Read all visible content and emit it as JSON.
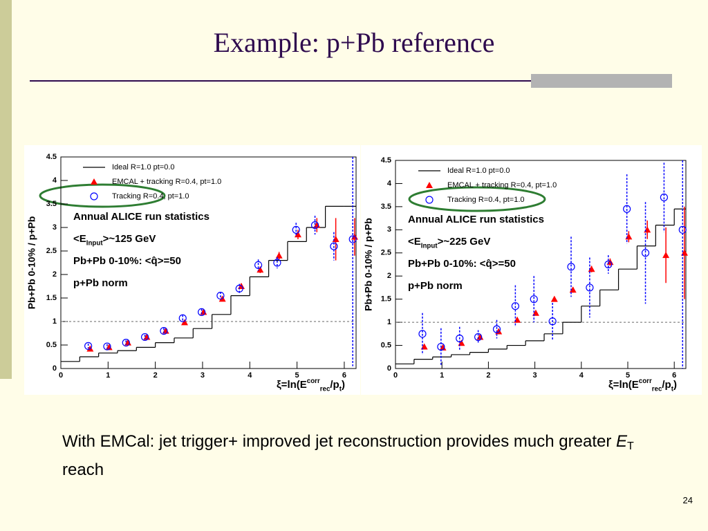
{
  "slide": {
    "title": "Example: p+Pb reference",
    "caption": [
      {
        "text": "With EMCal: jet trigger+ improved jet reconstruction provides much greater "
      },
      {
        "text": "E",
        "shift": "italic"
      },
      {
        "text": "T",
        "shift": "sub"
      },
      {
        "text": " reach"
      }
    ],
    "page": "24"
  },
  "chart_data": [
    {
      "type": "scatter",
      "ylabel": "Pb+Pb 0-10% / p+Pb",
      "xlabel": [
        {
          "text": "ξ=ln(E"
        },
        {
          "text": "corr",
          "shift": "sup"
        },
        {
          "text": "rec",
          "shift": "sub"
        },
        {
          "text": "/p"
        },
        {
          "text": "t",
          "shift": "sub"
        },
        {
          "text": ")"
        }
      ],
      "xlim": [
        0,
        6.25
      ],
      "ylim": [
        0,
        4.5
      ],
      "xticks": [
        0,
        1,
        2,
        3,
        4,
        5,
        6
      ],
      "yticks": [
        0,
        0.5,
        1,
        1.5,
        2,
        2.5,
        3,
        3.5,
        4,
        4.5
      ],
      "hline": 1,
      "annotations": [
        [
          {
            "text": "Annual ALICE run statistics"
          }
        ],
        [
          {
            "text": "<E"
          },
          {
            "text": "Input",
            "shift": "sub"
          },
          {
            "text": ">~125 GeV"
          }
        ],
        [
          {
            "text": "Pb+Pb 0-10%: <q̂>=50"
          }
        ],
        [
          {
            "text": "p+Pb norm"
          }
        ]
      ],
      "series": [
        {
          "name": "Ideal R=1.0 pt=0.0",
          "color": "#000000",
          "bins": [
            0,
            0.4,
            0.8,
            1.2,
            1.6,
            2.0,
            2.4,
            2.8,
            3.2,
            3.6,
            4.0,
            4.4,
            4.8,
            5.2,
            5.6,
            6.0,
            6.25
          ],
          "values": [
            0.15,
            0.25,
            0.33,
            0.38,
            0.45,
            0.55,
            0.65,
            0.85,
            1.15,
            1.55,
            1.95,
            2.3,
            2.7,
            3.0,
            3.45,
            3.45
          ]
        },
        {
          "name": "EMCAL + tracking R=0.4, pt=1.0",
          "color": "#ff0000",
          "marker": "triangle",
          "x": [
            0.62,
            1.02,
            1.42,
            1.82,
            2.22,
            2.62,
            3.02,
            3.42,
            3.82,
            4.22,
            4.62,
            5.02,
            5.42,
            5.82,
            6.22
          ],
          "values": [
            0.42,
            0.45,
            0.55,
            0.67,
            0.8,
            0.98,
            1.2,
            1.48,
            1.75,
            2.1,
            2.4,
            2.85,
            3.05,
            2.75,
            2.8
          ],
          "errors": [
            0.03,
            0.03,
            0.03,
            0.03,
            0.04,
            0.04,
            0.05,
            0.05,
            0.06,
            0.07,
            0.08,
            0.1,
            0.15,
            0.45,
            0.4
          ]
        },
        {
          "name": "Tracking R=0.4, pt=1.0",
          "color": "#0000ff",
          "marker": "circle",
          "x": [
            0.58,
            0.98,
            1.38,
            1.78,
            2.18,
            2.58,
            2.98,
            3.38,
            3.78,
            4.18,
            4.58,
            4.98,
            5.38,
            5.78,
            6.18
          ],
          "values": [
            0.48,
            0.47,
            0.55,
            0.67,
            0.8,
            1.07,
            1.2,
            1.55,
            1.7,
            2.2,
            2.25,
            2.95,
            3.05,
            2.6,
            2.75
          ],
          "errors": [
            0.05,
            0.05,
            0.05,
            0.05,
            0.06,
            0.07,
            0.07,
            0.08,
            0.1,
            0.12,
            0.12,
            0.15,
            0.2,
            0.3,
            2.7
          ]
        }
      ]
    },
    {
      "type": "scatter",
      "ylabel": "Pb+Pb 0-10% / p+Pb",
      "xlabel": [
        {
          "text": "ξ=ln(E"
        },
        {
          "text": "corr",
          "shift": "sup"
        },
        {
          "text": "rec",
          "shift": "sub"
        },
        {
          "text": "/p"
        },
        {
          "text": "t",
          "shift": "sub"
        },
        {
          "text": ")"
        }
      ],
      "xlim": [
        0,
        6.25
      ],
      "ylim": [
        0,
        4.5
      ],
      "xticks": [
        0,
        1,
        2,
        3,
        4,
        5,
        6
      ],
      "yticks": [
        0,
        0.5,
        1,
        1.5,
        2,
        2.5,
        3,
        3.5,
        4,
        4.5
      ],
      "hline": 1,
      "annotations": [
        [
          {
            "text": "Annual ALICE run statistics"
          }
        ],
        [
          {
            "text": "<E"
          },
          {
            "text": "Input",
            "shift": "sub"
          },
          {
            "text": ">~225 GeV"
          }
        ],
        [
          {
            "text": "Pb+Pb 0-10%: <q̂>=50"
          }
        ],
        [
          {
            "text": "p+Pb norm"
          }
        ]
      ],
      "series": [
        {
          "name": "Ideal R=1.0 pt=0.0",
          "color": "#000000",
          "bins": [
            0,
            0.4,
            0.8,
            1.2,
            1.6,
            2.0,
            2.4,
            2.8,
            3.2,
            3.6,
            4.0,
            4.4,
            4.8,
            5.2,
            5.6,
            6.0,
            6.25
          ],
          "values": [
            0.1,
            0.2,
            0.25,
            0.3,
            0.35,
            0.42,
            0.5,
            0.6,
            0.75,
            1.0,
            1.35,
            1.7,
            2.15,
            2.65,
            3.1,
            3.45
          ]
        },
        {
          "name": "EMCAL + tracking R=0.4, pt=1.0",
          "color": "#ff0000",
          "marker": "triangle",
          "x": [
            0.62,
            1.02,
            1.42,
            1.82,
            2.22,
            2.62,
            3.02,
            3.42,
            3.82,
            4.22,
            4.62,
            5.02,
            5.42,
            5.82,
            6.22
          ],
          "values": [
            0.47,
            0.45,
            0.55,
            0.68,
            0.8,
            1.05,
            1.2,
            1.5,
            1.7,
            2.15,
            2.3,
            2.85,
            3.0,
            2.45,
            2.5
          ],
          "errors": [
            0.03,
            0.03,
            0.03,
            0.03,
            0.04,
            0.04,
            0.05,
            0.05,
            0.06,
            0.07,
            0.08,
            0.12,
            0.2,
            0.6,
            1.0
          ]
        },
        {
          "name": "Tracking R=0.4, pt=1.0",
          "color": "#0000ff",
          "marker": "circle",
          "x": [
            0.58,
            0.98,
            1.38,
            1.78,
            2.18,
            2.58,
            2.98,
            3.38,
            3.78,
            4.18,
            4.58,
            4.98,
            5.38,
            5.78,
            6.18
          ],
          "values": [
            0.75,
            0.47,
            0.65,
            0.68,
            0.85,
            1.35,
            1.5,
            1.02,
            2.2,
            1.75,
            2.25,
            3.45,
            2.5,
            3.7,
            3.0
          ],
          "errors": [
            0.45,
            0.4,
            0.25,
            0.15,
            0.2,
            0.45,
            0.5,
            0.4,
            0.65,
            0.65,
            0.2,
            0.75,
            1.1,
            0.75,
            3.0
          ]
        }
      ]
    }
  ]
}
